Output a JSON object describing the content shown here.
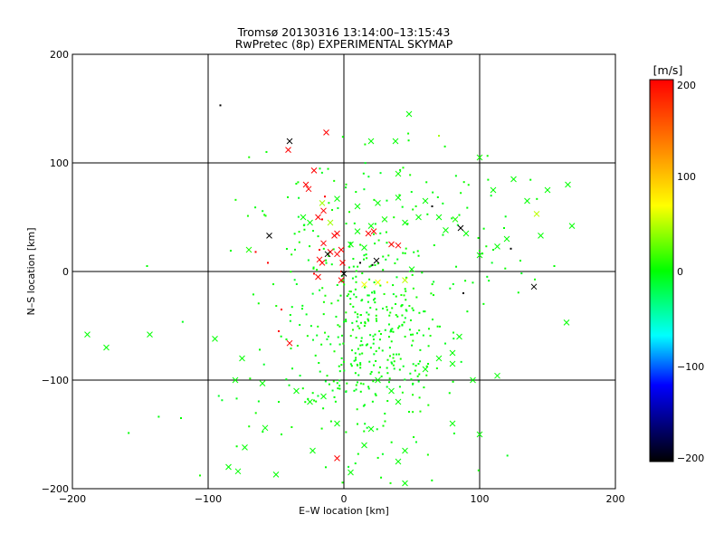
{
  "chart_data": {
    "type": "scatter",
    "title": "Tromsø 20130316 13:14:00–13:15:43",
    "subtitle": "RwPretec (8p) EXPERIMENTAL SKYMAP",
    "xlabel": "E–W location [km]",
    "ylabel": "N–S location [km]",
    "xlim": [
      -200,
      200
    ],
    "ylim": [
      -200,
      200
    ],
    "x_ticks": [
      "−200",
      "−100",
      "0",
      "100",
      "200"
    ],
    "y_ticks": [
      "−200",
      "−100",
      "0",
      "100",
      "200"
    ],
    "grid": true,
    "colorbar": {
      "label": "[m/s]",
      "range": [
        -200,
        200
      ],
      "ticks": [
        "200",
        "100",
        "0",
        "−100",
        "−200"
      ],
      "colors": [
        "#ff0000",
        "#ff8000",
        "#ffff00",
        "#00ff00",
        "#00ffff",
        "#0000ff",
        "#000000"
      ],
      "position": "right"
    },
    "cross_points": [
      [
        -40,
        120,
        -200
      ],
      [
        -41,
        112,
        200
      ],
      [
        -13,
        128,
        200
      ],
      [
        -22,
        93,
        200
      ],
      [
        -28,
        80,
        200
      ],
      [
        -26,
        76,
        200
      ],
      [
        -16,
        63,
        60
      ],
      [
        -15,
        56,
        200
      ],
      [
        -19,
        50,
        200
      ],
      [
        -10,
        45,
        60
      ],
      [
        -5,
        35,
        200
      ],
      [
        -7,
        33,
        200
      ],
      [
        -15,
        26,
        200
      ],
      [
        -10,
        18,
        200
      ],
      [
        -2,
        20,
        200
      ],
      [
        -5,
        16,
        200
      ],
      [
        -12,
        16,
        -200
      ],
      [
        -18,
        11,
        200
      ],
      [
        -16,
        8,
        200
      ],
      [
        -55,
        33,
        -200
      ],
      [
        -70,
        20,
        10
      ],
      [
        -1,
        8,
        200
      ],
      [
        0,
        -2,
        -200
      ],
      [
        -2,
        -8,
        200
      ],
      [
        -19,
        -5,
        200
      ],
      [
        -40,
        -66,
        200
      ],
      [
        -5,
        -172,
        200
      ],
      [
        18,
        35,
        200
      ],
      [
        22,
        37,
        200
      ],
      [
        35,
        25,
        200
      ],
      [
        40,
        24,
        200
      ],
      [
        24,
        10,
        -200
      ],
      [
        86,
        40,
        -200
      ],
      [
        140,
        -14,
        -200
      ],
      [
        82,
        48,
        10
      ],
      [
        15,
        -12,
        90
      ],
      [
        25,
        -10,
        90
      ],
      [
        45,
        -8,
        70
      ],
      [
        142,
        53,
        70
      ],
      [
        10,
        60,
        0
      ],
      [
        20,
        42,
        0
      ],
      [
        30,
        48,
        5
      ],
      [
        45,
        45,
        0
      ],
      [
        55,
        50,
        0
      ],
      [
        70,
        50,
        0
      ],
      [
        75,
        38,
        0
      ],
      [
        90,
        35,
        0
      ],
      [
        100,
        105,
        5
      ],
      [
        110,
        75,
        0
      ],
      [
        125,
        85,
        0
      ],
      [
        135,
        65,
        0
      ],
      [
        150,
        75,
        0
      ],
      [
        165,
        80,
        0
      ],
      [
        168,
        42,
        0
      ],
      [
        145,
        33,
        0
      ],
      [
        120,
        30,
        0
      ],
      [
        100,
        15,
        0
      ],
      [
        113,
        23,
        0
      ],
      [
        60,
        65,
        0
      ],
      [
        40,
        68,
        0
      ],
      [
        25,
        63,
        0
      ],
      [
        10,
        37,
        0
      ],
      [
        5,
        25,
        0
      ],
      [
        15,
        22,
        0
      ],
      [
        50,
        2,
        0
      ],
      [
        40,
        90,
        5
      ],
      [
        20,
        120,
        0
      ],
      [
        -5,
        67,
        0
      ],
      [
        -30,
        50,
        0
      ],
      [
        48,
        145,
        0
      ],
      [
        38,
        120,
        0
      ],
      [
        -25,
        45,
        0
      ],
      [
        -189,
        -58,
        0
      ],
      [
        -175,
        -70,
        0
      ],
      [
        -143,
        -58,
        0
      ],
      [
        -95,
        -62,
        0
      ],
      [
        -75,
        -80,
        0
      ],
      [
        -80,
        -100,
        0
      ],
      [
        -60,
        -103,
        0
      ],
      [
        -35,
        -110,
        0
      ],
      [
        -25,
        -120,
        0
      ],
      [
        -58,
        -144,
        0
      ],
      [
        -73,
        -162,
        0
      ],
      [
        -78,
        -184,
        0
      ],
      [
        -50,
        -187,
        0
      ],
      [
        -23,
        -165,
        0
      ],
      [
        -85,
        -180,
        0
      ],
      [
        5,
        -185,
        0
      ],
      [
        20,
        -145,
        0
      ],
      [
        40,
        -120,
        0
      ],
      [
        35,
        -110,
        0
      ],
      [
        25,
        -100,
        0
      ],
      [
        60,
        -90,
        0
      ],
      [
        70,
        -80,
        0
      ],
      [
        80,
        -75,
        0
      ],
      [
        85,
        -60,
        0
      ],
      [
        80,
        -85,
        0
      ],
      [
        95,
        -100,
        0
      ],
      [
        113,
        -96,
        0
      ],
      [
        80,
        -140,
        0
      ],
      [
        100,
        -150,
        0
      ],
      [
        45,
        -165,
        0
      ],
      [
        40,
        -175,
        0
      ],
      [
        45,
        -195,
        0
      ],
      [
        164,
        -47,
        0
      ],
      [
        15,
        -160,
        0
      ],
      [
        -5,
        -140,
        0
      ],
      [
        -15,
        -115,
        0
      ]
    ],
    "dot_points": [
      [
        -91,
        153,
        -200
      ],
      [
        -65,
        18,
        200
      ],
      [
        -56,
        8,
        200
      ],
      [
        -16,
        48,
        200
      ],
      [
        -14,
        69,
        200
      ],
      [
        -2,
        0,
        200
      ],
      [
        -48,
        -55,
        200
      ],
      [
        -22,
        -2,
        200
      ],
      [
        -18,
        20,
        200
      ],
      [
        32,
        -10,
        100
      ],
      [
        70,
        125,
        60
      ],
      [
        85,
        52,
        0
      ],
      [
        110,
        20,
        0
      ],
      [
        118,
        40,
        0
      ],
      [
        130,
        10,
        0
      ],
      [
        155,
        5,
        0
      ],
      [
        -120,
        -135,
        0
      ],
      [
        -145,
        5,
        0
      ],
      [
        -62,
        -72,
        0
      ],
      [
        -48,
        -120,
        0
      ],
      [
        -46,
        -150,
        0
      ],
      [
        88,
        -20,
        -200
      ],
      [
        123,
        21,
        -200
      ],
      [
        12,
        8,
        -200
      ],
      [
        21,
        6,
        -200
      ],
      [
        65,
        60,
        -200
      ],
      [
        -46,
        -35,
        200
      ]
    ],
    "cloud_note": "dense green cloud of small markers centered near (30,-60) km"
  }
}
